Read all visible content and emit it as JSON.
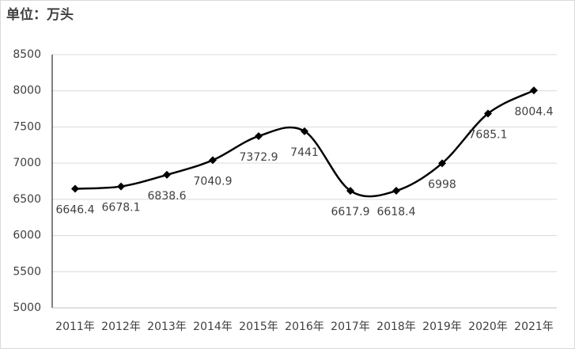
{
  "chart_data": {
    "type": "line",
    "title": "单位：万头",
    "categories": [
      "2011年",
      "2012年",
      "2013年",
      "2014年",
      "2015年",
      "2016年",
      "2017年",
      "2018年",
      "2019年",
      "2020年",
      "2021年"
    ],
    "values": [
      6646.4,
      6678.1,
      6838.6,
      7040.9,
      7372.9,
      7441,
      6617.9,
      6618.4,
      6998,
      7685.1,
      8004.4
    ],
    "color": "#000000",
    "smooth": true,
    "markers": "diamond",
    "ylim": [
      5000,
      8500
    ],
    "yticks": [
      5000,
      5500,
      6000,
      6500,
      7000,
      7500,
      8000,
      8500
    ],
    "grid": true
  }
}
